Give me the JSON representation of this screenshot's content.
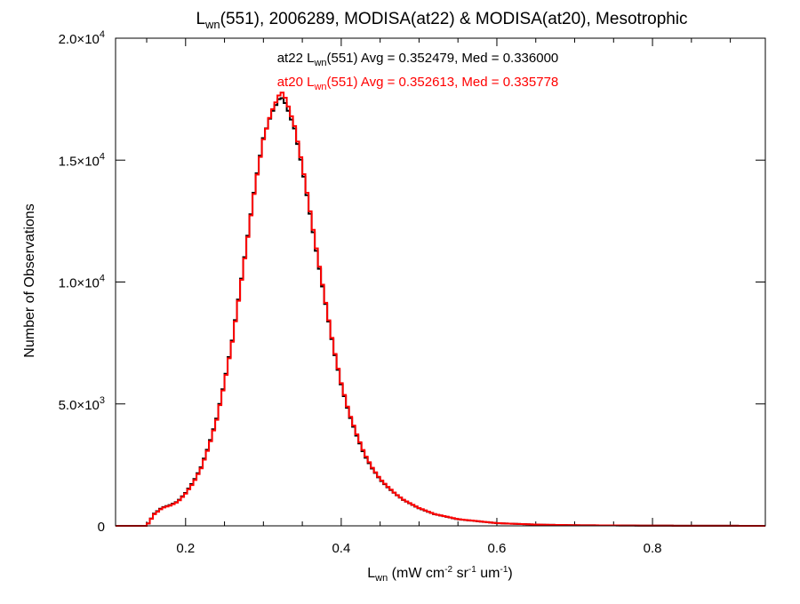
{
  "chart_data": {
    "type": "line",
    "step": true,
    "title": {
      "prefix": "L",
      "sub": "wn",
      "rest": "(551), 2006289, MODISA(at22) & MODISA(at20), Mesotrophic"
    },
    "xlabel": {
      "prefix": "L",
      "sub": "wn",
      "u1": " (mW cm",
      "e1": "-2",
      "u2": " sr",
      "e2": "-1",
      "u3": " um",
      "e3": "-1",
      "u4": ")"
    },
    "ylabel": "Number of Observations",
    "xlim": [
      0.11,
      0.945
    ],
    "ylim": [
      0,
      20000
    ],
    "x_ticks": [
      {
        "value": 0.2,
        "label": "0.2"
      },
      {
        "value": 0.4,
        "label": "0.4"
      },
      {
        "value": 0.6,
        "label": "0.6"
      },
      {
        "value": 0.8,
        "label": "0.8"
      }
    ],
    "y_ticks": [
      {
        "value": 0,
        "mant": "0",
        "exp": ""
      },
      {
        "value": 5000,
        "mant": "5.0×10",
        "exp": "3"
      },
      {
        "value": 10000,
        "mant": "1.0×10",
        "exp": "4"
      },
      {
        "value": 15000,
        "mant": "1.5×10",
        "exp": "4"
      },
      {
        "value": 20000,
        "mant": "2.0×10",
        "exp": "4"
      }
    ],
    "grid": false,
    "annotations": [
      {
        "color": "#000000",
        "prefix": "at22 L",
        "sub": "wn",
        "rest": "(551) Avg = 0.352479, Med = 0.336000"
      },
      {
        "color": "#ff0000",
        "prefix": "at20 L",
        "sub": "wn",
        "rest": "(551) Avg = 0.352613, Med = 0.335778"
      }
    ],
    "series": [
      {
        "color": "#000000",
        "x": [
          0.11,
          0.15,
          0.16,
          0.17,
          0.18,
          0.19,
          0.2,
          0.21,
          0.22,
          0.23,
          0.24,
          0.25,
          0.26,
          0.27,
          0.28,
          0.29,
          0.3,
          0.31,
          0.32,
          0.325,
          0.33,
          0.34,
          0.35,
          0.36,
          0.37,
          0.38,
          0.39,
          0.4,
          0.41,
          0.42,
          0.43,
          0.44,
          0.45,
          0.46,
          0.47,
          0.48,
          0.5,
          0.52,
          0.55,
          0.6,
          0.65,
          0.7,
          0.8,
          0.9,
          0.945
        ],
        "y": [
          0,
          0,
          500,
          750,
          850,
          1000,
          1350,
          1800,
          2400,
          3300,
          4400,
          5900,
          7600,
          9700,
          11900,
          14100,
          15900,
          16900,
          17500,
          17550,
          17200,
          16300,
          14700,
          12800,
          10900,
          9100,
          7300,
          5800,
          4600,
          3700,
          2900,
          2350,
          1900,
          1580,
          1300,
          1060,
          720,
          480,
          270,
          110,
          50,
          25,
          8,
          3,
          0
        ]
      },
      {
        "color": "#ff0000",
        "x": [
          0.11,
          0.15,
          0.16,
          0.17,
          0.18,
          0.19,
          0.2,
          0.21,
          0.22,
          0.23,
          0.24,
          0.25,
          0.26,
          0.27,
          0.28,
          0.29,
          0.3,
          0.31,
          0.32,
          0.325,
          0.33,
          0.34,
          0.35,
          0.36,
          0.37,
          0.38,
          0.39,
          0.4,
          0.41,
          0.42,
          0.43,
          0.44,
          0.45,
          0.46,
          0.47,
          0.48,
          0.5,
          0.52,
          0.55,
          0.6,
          0.65,
          0.7,
          0.8,
          0.9,
          0.945
        ],
        "y": [
          0,
          0,
          480,
          730,
          830,
          980,
          1320,
          1760,
          2360,
          3250,
          4350,
          5850,
          7550,
          9650,
          11850,
          14050,
          15850,
          16950,
          17650,
          17800,
          17400,
          16400,
          14800,
          12900,
          11000,
          9150,
          7350,
          5850,
          4650,
          3750,
          2950,
          2380,
          1920,
          1600,
          1310,
          1070,
          730,
          485,
          275,
          112,
          52,
          26,
          8,
          3,
          0
        ]
      }
    ]
  }
}
